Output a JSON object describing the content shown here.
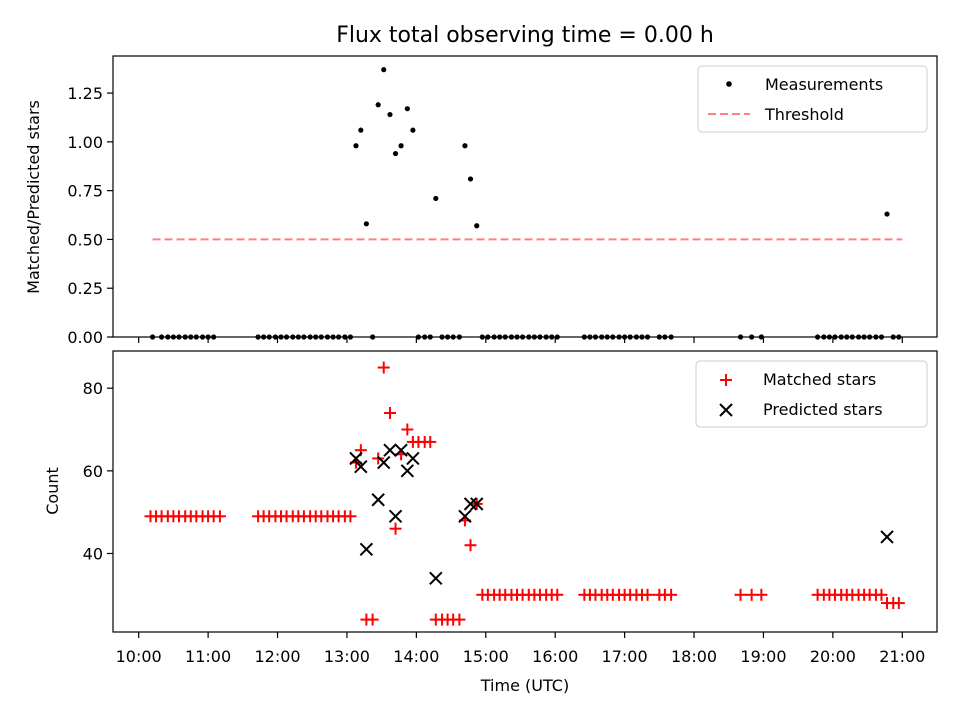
{
  "title": "Flux total observing time = 0.00 h",
  "colors": {
    "matched": "#ff0000",
    "predicted": "#000000",
    "threshold": "#ff7f7f",
    "measure": "#000000"
  },
  "chart_data": [
    {
      "type": "scatter",
      "ylabel": "Matched/Predicted stars",
      "ylim": [
        0,
        1.44
      ],
      "yticks": [
        "0.00",
        "0.25",
        "0.50",
        "0.75",
        "1.00",
        "1.25"
      ],
      "ytick_values": [
        0,
        0.25,
        0.5,
        0.75,
        1.0,
        1.25
      ],
      "legend": {
        "position": "top-right",
        "entries": [
          "Measurements",
          "Threshold"
        ]
      },
      "threshold": {
        "name": "Threshold",
        "y": 0.5,
        "x": [
          10.2,
          21.0
        ]
      },
      "series": [
        {
          "name": "Measurements",
          "points": [
            [
              10.2,
              0
            ],
            [
              10.33,
              0
            ],
            [
              10.42,
              0
            ],
            [
              10.5,
              0
            ],
            [
              10.58,
              0
            ],
            [
              10.67,
              0
            ],
            [
              10.75,
              0
            ],
            [
              10.83,
              0
            ],
            [
              10.92,
              0
            ],
            [
              11.0,
              0
            ],
            [
              11.08,
              0
            ],
            [
              11.72,
              0
            ],
            [
              11.8,
              0
            ],
            [
              11.88,
              0
            ],
            [
              11.97,
              0
            ],
            [
              12.05,
              0
            ],
            [
              12.13,
              0
            ],
            [
              12.22,
              0
            ],
            [
              12.3,
              0
            ],
            [
              12.38,
              0
            ],
            [
              12.47,
              0
            ],
            [
              12.55,
              0
            ],
            [
              12.63,
              0
            ],
            [
              12.72,
              0
            ],
            [
              12.8,
              0
            ],
            [
              12.88,
              0
            ],
            [
              12.97,
              0
            ],
            [
              13.05,
              0
            ],
            [
              13.13,
              0.98
            ],
            [
              13.2,
              1.06
            ],
            [
              13.28,
              0.58
            ],
            [
              13.37,
              0
            ],
            [
              13.45,
              1.19
            ],
            [
              13.53,
              1.37
            ],
            [
              13.62,
              1.14
            ],
            [
              13.7,
              0.94
            ],
            [
              13.78,
              0.98
            ],
            [
              13.87,
              1.17
            ],
            [
              13.95,
              1.06
            ],
            [
              14.03,
              0
            ],
            [
              14.12,
              0
            ],
            [
              14.2,
              0
            ],
            [
              14.28,
              0.71
            ],
            [
              14.37,
              0
            ],
            [
              14.45,
              0
            ],
            [
              14.53,
              0
            ],
            [
              14.62,
              0
            ],
            [
              14.7,
              0.98
            ],
            [
              14.78,
              0.81
            ],
            [
              14.87,
              0.57
            ],
            [
              14.95,
              0
            ],
            [
              15.03,
              0
            ],
            [
              15.12,
              0
            ],
            [
              15.2,
              0
            ],
            [
              15.28,
              0
            ],
            [
              15.37,
              0
            ],
            [
              15.45,
              0
            ],
            [
              15.53,
              0
            ],
            [
              15.62,
              0
            ],
            [
              15.7,
              0
            ],
            [
              15.78,
              0
            ],
            [
              15.87,
              0
            ],
            [
              15.95,
              0
            ],
            [
              16.03,
              0
            ],
            [
              16.42,
              0
            ],
            [
              16.5,
              0
            ],
            [
              16.58,
              0
            ],
            [
              16.67,
              0
            ],
            [
              16.75,
              0
            ],
            [
              16.83,
              0
            ],
            [
              16.92,
              0
            ],
            [
              17.0,
              0
            ],
            [
              17.08,
              0
            ],
            [
              17.17,
              0
            ],
            [
              17.25,
              0
            ],
            [
              17.33,
              0
            ],
            [
              17.5,
              0
            ],
            [
              17.58,
              0
            ],
            [
              17.67,
              0
            ],
            [
              18.67,
              0
            ],
            [
              18.83,
              0
            ],
            [
              18.97,
              0
            ],
            [
              19.78,
              0
            ],
            [
              19.87,
              0
            ],
            [
              19.95,
              0
            ],
            [
              20.03,
              0
            ],
            [
              20.12,
              0
            ],
            [
              20.2,
              0
            ],
            [
              20.28,
              0
            ],
            [
              20.37,
              0
            ],
            [
              20.45,
              0
            ],
            [
              20.53,
              0
            ],
            [
              20.62,
              0
            ],
            [
              20.7,
              0
            ],
            [
              20.78,
              0.63
            ],
            [
              20.87,
              0
            ],
            [
              20.95,
              0
            ]
          ]
        }
      ]
    },
    {
      "type": "scatter",
      "xlabel": "Time (UTC)",
      "ylabel": "Count",
      "ylim": [
        21,
        89
      ],
      "yticks": [
        "40",
        "60",
        "80"
      ],
      "ytick_values": [
        40,
        60,
        80
      ],
      "xlim": [
        9.63,
        21.5
      ],
      "xticks": [
        "10:00",
        "11:00",
        "12:00",
        "13:00",
        "14:00",
        "15:00",
        "16:00",
        "17:00",
        "18:00",
        "19:00",
        "20:00",
        "21:00"
      ],
      "xtick_values": [
        10,
        11,
        12,
        13,
        14,
        15,
        16,
        17,
        18,
        19,
        20,
        21
      ],
      "legend": {
        "position": "top-right",
        "entries": [
          "Matched stars",
          "Predicted stars"
        ]
      },
      "series": [
        {
          "name": "Matched stars",
          "points": [
            [
              10.17,
              49
            ],
            [
              10.25,
              49
            ],
            [
              10.33,
              49
            ],
            [
              10.42,
              49
            ],
            [
              10.5,
              49
            ],
            [
              10.58,
              49
            ],
            [
              10.67,
              49
            ],
            [
              10.75,
              49
            ],
            [
              10.83,
              49
            ],
            [
              10.92,
              49
            ],
            [
              11.0,
              49
            ],
            [
              11.08,
              49
            ],
            [
              11.17,
              49
            ],
            [
              11.72,
              49
            ],
            [
              11.8,
              49
            ],
            [
              11.88,
              49
            ],
            [
              11.97,
              49
            ],
            [
              12.05,
              49
            ],
            [
              12.13,
              49
            ],
            [
              12.22,
              49
            ],
            [
              12.3,
              49
            ],
            [
              12.38,
              49
            ],
            [
              12.47,
              49
            ],
            [
              12.55,
              49
            ],
            [
              12.63,
              49
            ],
            [
              12.72,
              49
            ],
            [
              12.8,
              49
            ],
            [
              12.88,
              49
            ],
            [
              12.97,
              49
            ],
            [
              13.05,
              49
            ],
            [
              13.13,
              62
            ],
            [
              13.2,
              65
            ],
            [
              13.28,
              24
            ],
            [
              13.37,
              24
            ],
            [
              13.45,
              63
            ],
            [
              13.53,
              85
            ],
            [
              13.62,
              74
            ],
            [
              13.7,
              46
            ],
            [
              13.78,
              64
            ],
            [
              13.87,
              70
            ],
            [
              13.95,
              67
            ],
            [
              14.03,
              67
            ],
            [
              14.12,
              67
            ],
            [
              14.2,
              67
            ],
            [
              14.28,
              24
            ],
            [
              14.37,
              24
            ],
            [
              14.45,
              24
            ],
            [
              14.53,
              24
            ],
            [
              14.62,
              24
            ],
            [
              14.7,
              48
            ],
            [
              14.78,
              42
            ],
            [
              14.87,
              52
            ],
            [
              14.95,
              30
            ],
            [
              15.03,
              30
            ],
            [
              15.12,
              30
            ],
            [
              15.2,
              30
            ],
            [
              15.28,
              30
            ],
            [
              15.37,
              30
            ],
            [
              15.45,
              30
            ],
            [
              15.53,
              30
            ],
            [
              15.62,
              30
            ],
            [
              15.7,
              30
            ],
            [
              15.78,
              30
            ],
            [
              15.87,
              30
            ],
            [
              15.95,
              30
            ],
            [
              16.03,
              30
            ],
            [
              16.42,
              30
            ],
            [
              16.5,
              30
            ],
            [
              16.58,
              30
            ],
            [
              16.67,
              30
            ],
            [
              16.75,
              30
            ],
            [
              16.83,
              30
            ],
            [
              16.92,
              30
            ],
            [
              17.0,
              30
            ],
            [
              17.08,
              30
            ],
            [
              17.17,
              30
            ],
            [
              17.25,
              30
            ],
            [
              17.33,
              30
            ],
            [
              17.5,
              30
            ],
            [
              17.58,
              30
            ],
            [
              17.67,
              30
            ],
            [
              18.67,
              30
            ],
            [
              18.83,
              30
            ],
            [
              18.97,
              30
            ],
            [
              19.78,
              30
            ],
            [
              19.87,
              30
            ],
            [
              19.95,
              30
            ],
            [
              20.03,
              30
            ],
            [
              20.12,
              30
            ],
            [
              20.2,
              30
            ],
            [
              20.28,
              30
            ],
            [
              20.37,
              30
            ],
            [
              20.45,
              30
            ],
            [
              20.53,
              30
            ],
            [
              20.62,
              30
            ],
            [
              20.7,
              30
            ],
            [
              20.78,
              28
            ],
            [
              20.87,
              28
            ],
            [
              20.95,
              28
            ]
          ]
        },
        {
          "name": "Predicted stars",
          "points": [
            [
              13.13,
              63
            ],
            [
              13.2,
              61
            ],
            [
              13.28,
              41
            ],
            [
              13.45,
              53
            ],
            [
              13.53,
              62
            ],
            [
              13.62,
              65
            ],
            [
              13.7,
              49
            ],
            [
              13.78,
              65
            ],
            [
              13.87,
              60
            ],
            [
              13.95,
              63
            ],
            [
              14.28,
              34
            ],
            [
              14.7,
              49
            ],
            [
              14.78,
              52
            ],
            [
              14.87,
              52
            ],
            [
              20.78,
              44
            ]
          ]
        }
      ]
    }
  ]
}
